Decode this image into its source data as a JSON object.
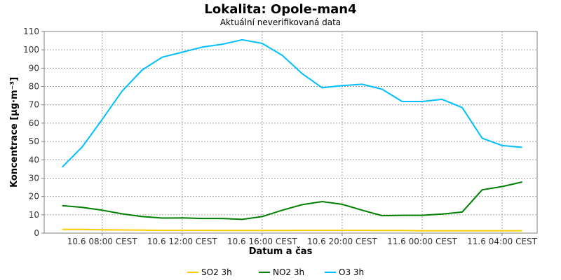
{
  "chart_data": {
    "type": "line",
    "title": "Lokalita: Opole-man4",
    "subtitle": "Aktuální neverifikovaná data",
    "xlabel": "Datum a čas",
    "ylabel": "Koncentrace [µg·m⁻³]",
    "ylim": [
      0,
      110
    ],
    "yticks": [
      0,
      10,
      20,
      30,
      40,
      50,
      60,
      70,
      80,
      90,
      100,
      110
    ],
    "xlim": [
      5.1,
      29.75
    ],
    "xticks": [
      {
        "x": 8,
        "label": "10.6 08:00 CEST"
      },
      {
        "x": 12,
        "label": "10.6 12:00 CEST"
      },
      {
        "x": 16,
        "label": "10.6 16:00 CEST"
      },
      {
        "x": 20,
        "label": "10.6 20:00 CEST"
      },
      {
        "x": 24,
        "label": "11.6 00:00 CEST"
      },
      {
        "x": 28,
        "label": "11.6 04:00 CEST"
      }
    ],
    "grid": true,
    "legend_position": "bottom",
    "x": [
      6,
      7,
      8,
      9,
      10,
      11,
      12,
      13,
      14,
      15,
      16,
      17,
      18,
      19,
      20,
      21,
      22,
      23,
      24,
      25,
      26,
      27,
      28,
      29
    ],
    "series": [
      {
        "name": "SO2 3h",
        "color": "#ffcc00",
        "values": [
          2,
          2,
          1.8,
          1.7,
          1.6,
          1.5,
          1.5,
          1.5,
          1.4,
          1.4,
          1.4,
          1.4,
          1.5,
          1.5,
          1.5,
          1.5,
          1.4,
          1.4,
          1.3,
          1.3,
          1.3,
          1.3,
          1.3,
          1.3
        ]
      },
      {
        "name": "NO2 3h",
        "color": "#008000",
        "values": [
          15,
          14,
          12.5,
          10.5,
          9,
          8.2,
          8.3,
          8,
          8,
          7.5,
          9,
          12.5,
          15.5,
          17.2,
          15.7,
          12.5,
          9.5,
          9.7,
          9.7,
          10.4,
          11.5,
          23.6,
          25.4,
          27.9
        ]
      },
      {
        "name": "O3 3h",
        "color": "#00bfff",
        "values": [
          36,
          47,
          62,
          77.5,
          89,
          96,
          98.7,
          101.5,
          103,
          105.5,
          103.5,
          97,
          87,
          79.3,
          80.5,
          81.2,
          78.5,
          71.8,
          71.8,
          73,
          68.5,
          51.8,
          47.8,
          46.8
        ]
      }
    ]
  }
}
